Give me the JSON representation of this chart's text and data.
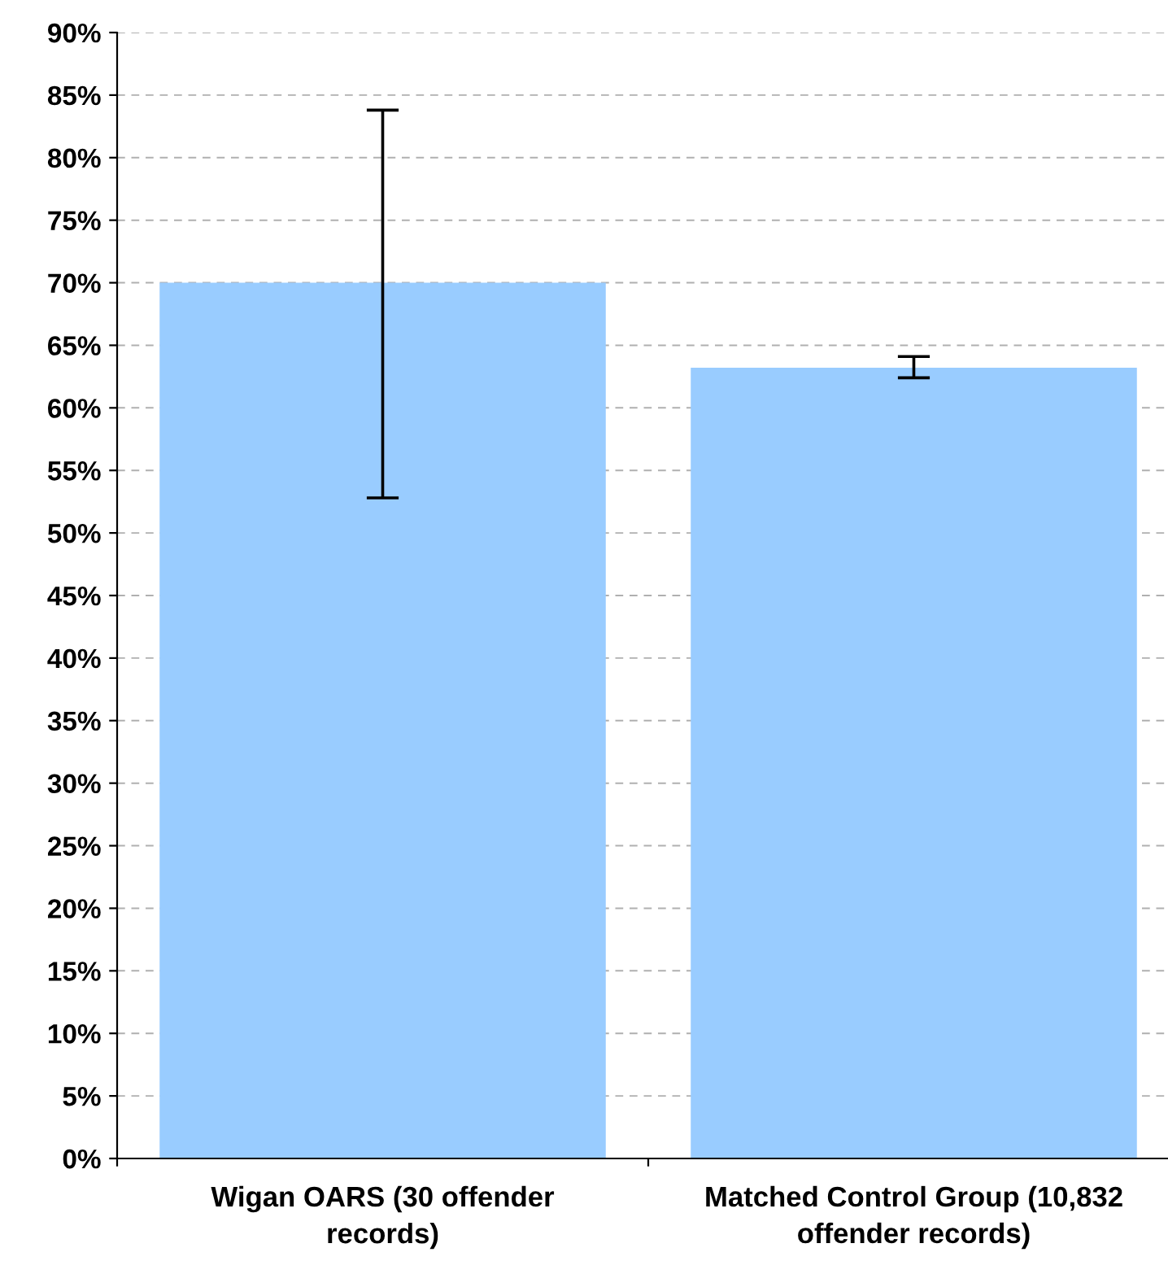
{
  "chart_data": {
    "type": "bar",
    "categories": [
      "Wigan OARS (30 offender records)",
      "Matched Control Group (10,832 offender records)"
    ],
    "values": [
      70.0,
      63.2
    ],
    "errors": [
      [
        52.8,
        83.8
      ],
      [
        62.4,
        64.1
      ]
    ],
    "color": "#99ccff",
    "ylim": [
      0,
      90
    ],
    "yticks": [
      {
        "value": 0,
        "label": "0%"
      },
      {
        "value": 5,
        "label": "5%"
      },
      {
        "value": 10,
        "label": "10%"
      },
      {
        "value": 15,
        "label": "15%"
      },
      {
        "value": 20,
        "label": "20%"
      },
      {
        "value": 25,
        "label": "25%"
      },
      {
        "value": 30,
        "label": "30%"
      },
      {
        "value": 35,
        "label": "35%"
      },
      {
        "value": 40,
        "label": "40%"
      },
      {
        "value": 45,
        "label": "45%"
      },
      {
        "value": 50,
        "label": "50%"
      },
      {
        "value": 55,
        "label": "55%"
      },
      {
        "value": 60,
        "label": "60%"
      },
      {
        "value": 65,
        "label": "65%"
      },
      {
        "value": 70,
        "label": "70%"
      },
      {
        "value": 75,
        "label": "75%"
      },
      {
        "value": 80,
        "label": "80%"
      },
      {
        "value": 85,
        "label": "85%"
      },
      {
        "value": 90,
        "label": "90%"
      }
    ],
    "grid": "y"
  }
}
